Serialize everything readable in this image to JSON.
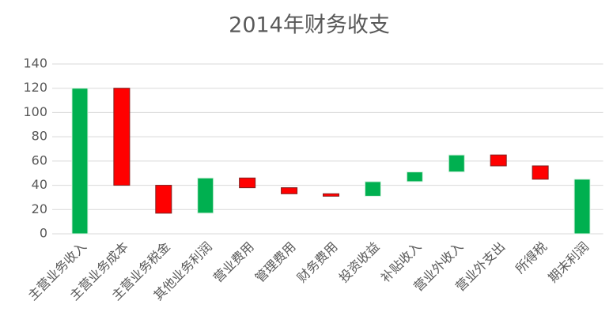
{
  "chart_data": {
    "type": "waterfall",
    "title": "2014年财务收支",
    "categories": [
      "主营业务收入",
      "主营业务成本",
      "主营业务税金",
      "其他业务利润",
      "营业费用",
      "管理费用",
      "财务费用",
      "投资收益",
      "补贴收入",
      "营业外收入",
      "营业外支出",
      "所得税",
      "期末利润"
    ],
    "values": [
      120,
      -80,
      -23,
      29,
      -8,
      -5,
      -2,
      12,
      8,
      14,
      -9,
      -11,
      45
    ],
    "totals": [
      0,
      12
    ],
    "increase_color": "#00b050",
    "decrease_color": "#ff0000",
    "total_color": "#00b050",
    "ylim": [
      0,
      140
    ],
    "yticks": [
      0,
      20,
      40,
      60,
      80,
      100,
      120,
      140
    ],
    "grid": true
  }
}
